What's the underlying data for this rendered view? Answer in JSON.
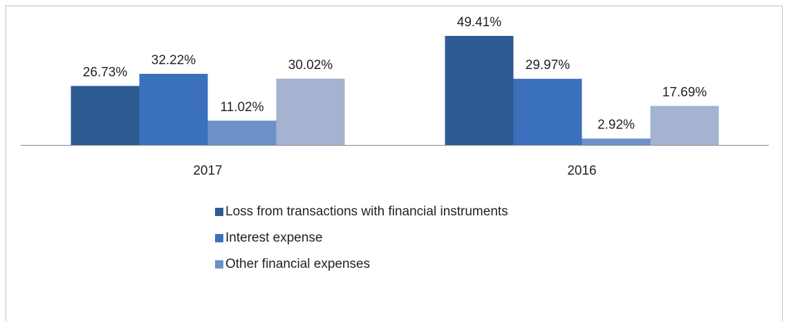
{
  "chart_data": {
    "type": "bar",
    "categories": [
      "2017",
      "2016"
    ],
    "series": [
      {
        "name": "Loss from transactions with financial instruments",
        "color": "#2f5b93",
        "values": [
          26.73,
          49.41
        ],
        "value_labels": [
          "26.73%",
          "49.41%"
        ]
      },
      {
        "name": "Interest expense",
        "color": "#3b70bd",
        "values": [
          32.22,
          29.97
        ],
        "value_labels": [
          "32.22%",
          "29.97%"
        ]
      },
      {
        "name": "Other financial expenses",
        "color": "#6d90c8",
        "values": [
          11.02,
          2.92
        ],
        "value_labels": [
          "11.02%",
          "2.92%"
        ]
      },
      {
        "color": "#a3b3d0",
        "values": [
          30.02,
          17.69
        ],
        "value_labels": [
          "30.02%",
          "17.69%"
        ]
      }
    ]
  }
}
